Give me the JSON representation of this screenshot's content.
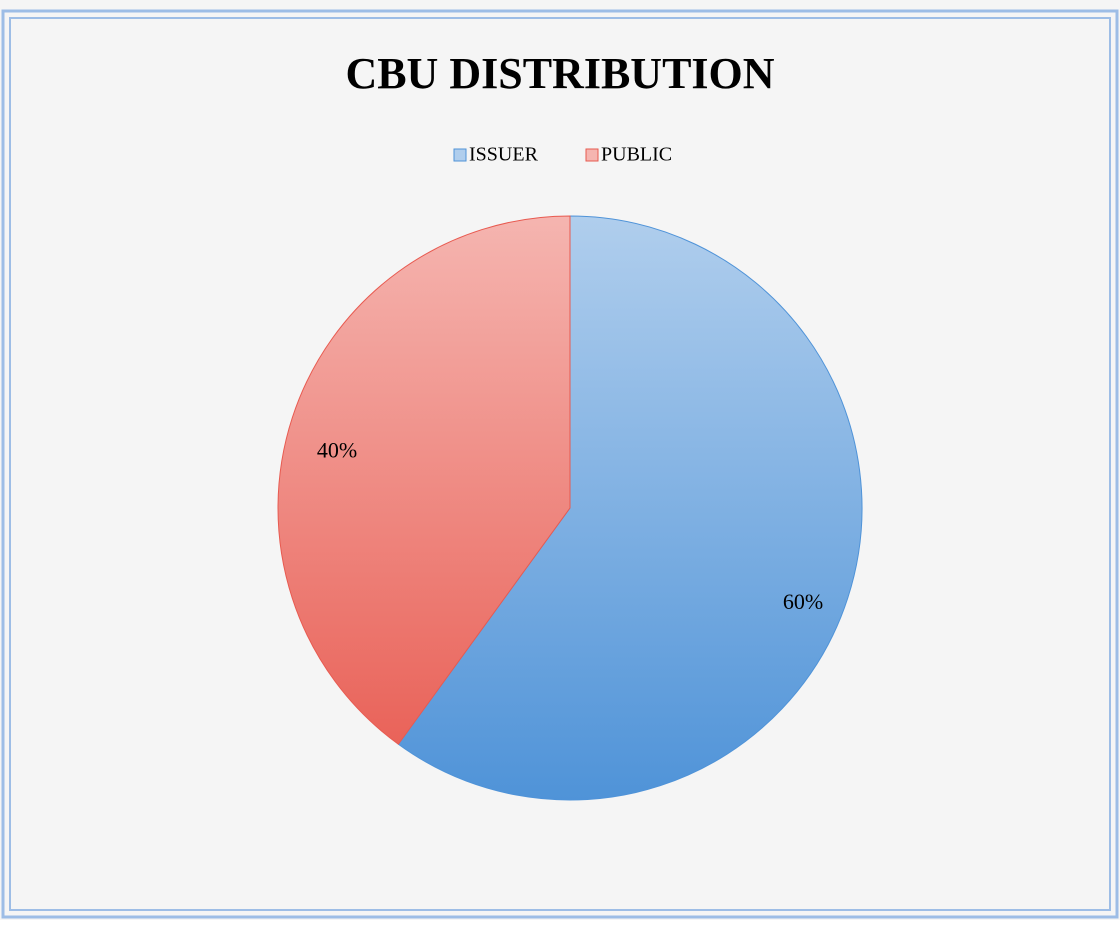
{
  "chart_data": {
    "type": "pie",
    "title": "CBU DISTRIBUTION",
    "categories": [
      "ISSUER",
      "PUBLIC"
    ],
    "values": [
      60,
      40
    ],
    "value_labels": [
      "60%",
      "40%"
    ],
    "colors": [
      "#4f93d8",
      "#e85a50"
    ],
    "legend": "top"
  }
}
